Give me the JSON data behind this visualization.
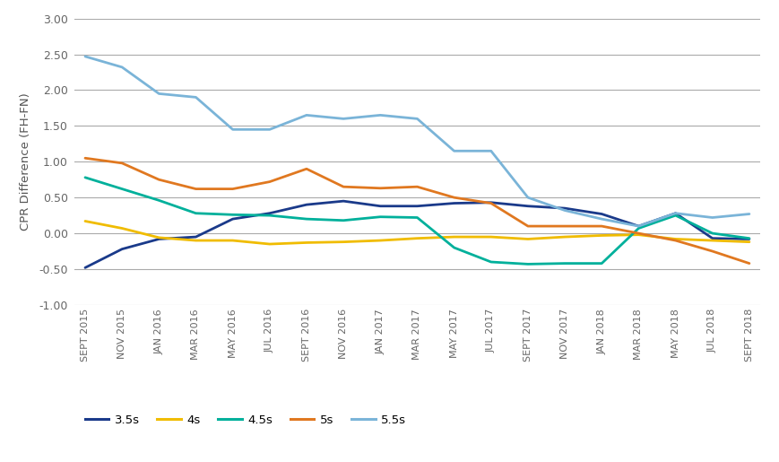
{
  "x_labels": [
    "SEPT 2015",
    "NOV 2015",
    "JAN 2016",
    "MAR 2016",
    "MAY 2016",
    "JUL 2016",
    "SEPT 2016",
    "NOV 2016",
    "JAN 2017",
    "MAR 2017",
    "MAY 2017",
    "JUL 2017",
    "SEPT 2017",
    "NOV 2017",
    "JAN 2018",
    "MAR 2018",
    "MAY 2018",
    "JUL 2018",
    "SEPT 2018"
  ],
  "series": {
    "3.5s": {
      "color": "#1a3a8a",
      "linewidth": 2.0,
      "values": [
        -0.48,
        -0.22,
        -0.08,
        -0.05,
        0.2,
        0.28,
        0.4,
        0.45,
        0.38,
        0.38,
        0.42,
        0.43,
        0.38,
        0.35,
        0.27,
        0.1,
        0.28,
        -0.07,
        -0.08
      ]
    },
    "4s": {
      "color": "#f0bc00",
      "linewidth": 2.0,
      "values": [
        0.17,
        0.07,
        -0.06,
        -0.1,
        -0.1,
        -0.15,
        -0.13,
        -0.12,
        -0.1,
        -0.07,
        -0.05,
        -0.05,
        -0.08,
        -0.05,
        -0.03,
        -0.02,
        -0.08,
        -0.1,
        -0.12
      ]
    },
    "4.5s": {
      "color": "#00b09b",
      "linewidth": 2.0,
      "values": [
        0.78,
        0.62,
        0.46,
        0.28,
        0.26,
        0.25,
        0.2,
        0.18,
        0.23,
        0.22,
        -0.2,
        -0.4,
        -0.43,
        -0.42,
        -0.42,
        0.07,
        0.25,
        0.0,
        -0.07
      ]
    },
    "5s": {
      "color": "#e07820",
      "linewidth": 2.0,
      "values": [
        1.05,
        0.98,
        0.75,
        0.62,
        0.62,
        0.72,
        0.9,
        0.65,
        0.63,
        0.65,
        0.5,
        0.42,
        0.1,
        0.1,
        0.1,
        0.0,
        -0.1,
        -0.25,
        -0.42
      ]
    },
    "5.5s": {
      "color": "#7ab4d8",
      "linewidth": 2.0,
      "values": [
        2.47,
        2.32,
        1.95,
        1.9,
        1.45,
        1.45,
        1.65,
        1.6,
        1.65,
        1.6,
        1.15,
        1.15,
        0.5,
        0.32,
        0.2,
        0.1,
        0.28,
        0.22,
        0.27
      ]
    }
  },
  "ylabel": "CPR Difference (FH-FN)",
  "ylim": [
    -1.0,
    3.0
  ],
  "yticks": [
    -1.0,
    -0.5,
    0.0,
    0.5,
    1.0,
    1.5,
    2.0,
    2.5,
    3.0
  ],
  "background_color": "#ffffff",
  "grid_color": "#aaaaaa",
  "legend_order": [
    "3.5s",
    "4s",
    "4.5s",
    "5s",
    "5.5s"
  ]
}
